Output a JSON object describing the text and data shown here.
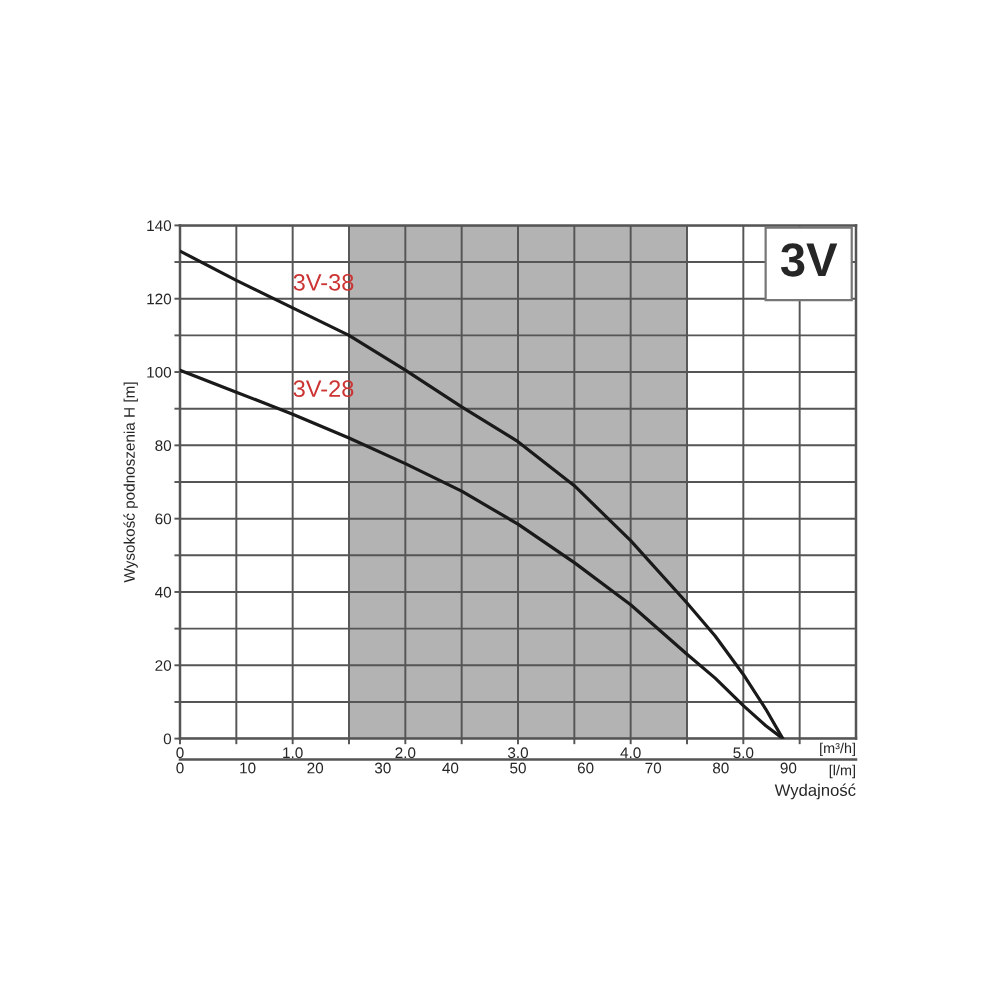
{
  "chart_data": {
    "type": "line",
    "title": "3V",
    "ylabel": "Wysokość podnoszenia H [m]",
    "xlabel": "[m³/h]",
    "x2label": "[l/m]",
    "annotations": [
      "Wydajność"
    ],
    "x": [
      0,
      0.5,
      1,
      1.5,
      2,
      2.5,
      3,
      3.5,
      4,
      4.5,
      4.75,
      5,
      5.2,
      5.35
    ],
    "series": [
      {
        "name": "3V-38",
        "color": "#1a1a1a",
        "values": [
          133,
          125,
          117.5,
          110,
          100.5,
          90.5,
          81,
          69,
          54,
          37,
          28,
          17.5,
          8,
          0
        ]
      },
      {
        "name": "3V-28",
        "color": "#1a1a1a",
        "values": [
          100.5,
          94.5,
          88.5,
          82,
          75,
          67.5,
          58.5,
          48,
          36.5,
          23,
          16.5,
          9,
          3.5,
          0
        ]
      }
    ],
    "xlim": [
      0,
      6
    ],
    "xticks": [
      0,
      {
        "value": 0.5,
        "label": null
      },
      {
        "value": 1,
        "label": "1.0"
      },
      {
        "value": 1.5,
        "label": null
      },
      {
        "value": 2,
        "label": "2.0"
      },
      {
        "value": 2.5,
        "label": null
      },
      {
        "value": 3,
        "label": "3.0"
      },
      {
        "value": 3.5,
        "label": null
      },
      {
        "value": 4,
        "label": "4.0"
      },
      {
        "value": 4.5,
        "label": null
      },
      {
        "value": 5,
        "label": "5.0"
      },
      {
        "value": 5.5,
        "label": null
      }
    ],
    "x2lim": [
      0,
      100
    ],
    "x2ticks": [
      0,
      10,
      20,
      30,
      40,
      50,
      60,
      70,
      80,
      90
    ],
    "ylim": [
      0,
      140
    ],
    "yticks": [
      0,
      {
        "value": 10,
        "label": null
      },
      20,
      {
        "value": 30,
        "label": null
      },
      40,
      {
        "value": 50,
        "label": null
      },
      60,
      {
        "value": 70,
        "label": null
      },
      80,
      {
        "value": 90,
        "label": null
      },
      100,
      {
        "value": 110,
        "label": null
      },
      120,
      {
        "value": 130,
        "label": null
      },
      140
    ],
    "bands": [
      {
        "axis": "x",
        "from": 1.5,
        "to": 4.5,
        "color": "#b3b3b3"
      }
    ],
    "grid": true,
    "legend": false
  }
}
